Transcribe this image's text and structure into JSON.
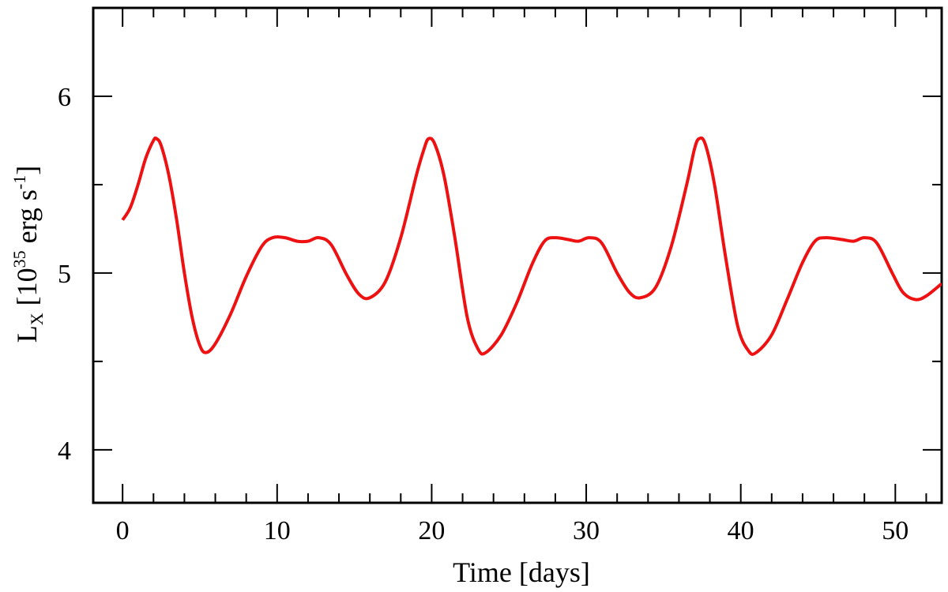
{
  "chart_data": {
    "type": "line",
    "title": "",
    "xlabel": "Time [days]",
    "ylabel": {
      "main": "L",
      "sub": "X",
      "unit_open": "[10",
      "unit_exp": "35",
      "unit_mid": " erg s",
      "unit_exp2": "-1",
      "unit_close": "]"
    },
    "xlim": [
      -1.9,
      53
    ],
    "ylim": [
      3.7,
      6.5
    ],
    "x_major_ticks": [
      0,
      10,
      20,
      30,
      40,
      50
    ],
    "x_minor_ticks": [
      2,
      4,
      6,
      8,
      12,
      14,
      16,
      18,
      22,
      24,
      26,
      28,
      32,
      34,
      36,
      38,
      42,
      44,
      46,
      48,
      52
    ],
    "y_major_ticks": [
      4,
      5,
      6
    ],
    "y_minor_ticks": [
      4.5,
      5.5
    ],
    "x_tick_labels": [
      "0",
      "10",
      "20",
      "30",
      "40",
      "50"
    ],
    "y_tick_labels": [
      "4",
      "5",
      "6"
    ],
    "grid": false,
    "series": [
      {
        "color": "#ee1111",
        "x": [
          0,
          0.5,
          1,
          1.5,
          2,
          2.2,
          2.5,
          3,
          3.5,
          4,
          4.5,
          5,
          5.4,
          6,
          7,
          8,
          9,
          9.7,
          10.5,
          11.3,
          12,
          12.7,
          13.5,
          14.5,
          15.3,
          16,
          17,
          18,
          19,
          19.5,
          19.8,
          20.2,
          20.8,
          21.5,
          22.3,
          23,
          23.5,
          24.5,
          25.5,
          26.5,
          27.3,
          28,
          28.8,
          29.5,
          30.2,
          31,
          32,
          32.8,
          33.5,
          34.5,
          35.5,
          36.5,
          37,
          37.3,
          37.7,
          38.3,
          39,
          39.8,
          40.5,
          41,
          42,
          43,
          44,
          44.8,
          45.5,
          46.5,
          47.3,
          48,
          48.8,
          49.8,
          50.5,
          51.3,
          52,
          53
        ],
        "y": [
          5.3,
          5.37,
          5.5,
          5.65,
          5.75,
          5.76,
          5.72,
          5.55,
          5.3,
          5.0,
          4.75,
          4.59,
          4.55,
          4.6,
          4.77,
          4.98,
          5.15,
          5.2,
          5.2,
          5.18,
          5.18,
          5.2,
          5.16,
          4.99,
          4.88,
          4.86,
          4.95,
          5.2,
          5.55,
          5.7,
          5.76,
          5.73,
          5.55,
          5.2,
          4.75,
          4.57,
          4.55,
          4.65,
          4.83,
          5.05,
          5.18,
          5.2,
          5.19,
          5.18,
          5.2,
          5.17,
          5.0,
          4.89,
          4.86,
          4.92,
          5.15,
          5.5,
          5.7,
          5.76,
          5.73,
          5.5,
          5.1,
          4.7,
          4.56,
          4.55,
          4.65,
          4.85,
          5.06,
          5.18,
          5.2,
          5.19,
          5.18,
          5.2,
          5.17,
          5.0,
          4.89,
          4.85,
          4.87,
          4.94
        ]
      }
    ]
  }
}
